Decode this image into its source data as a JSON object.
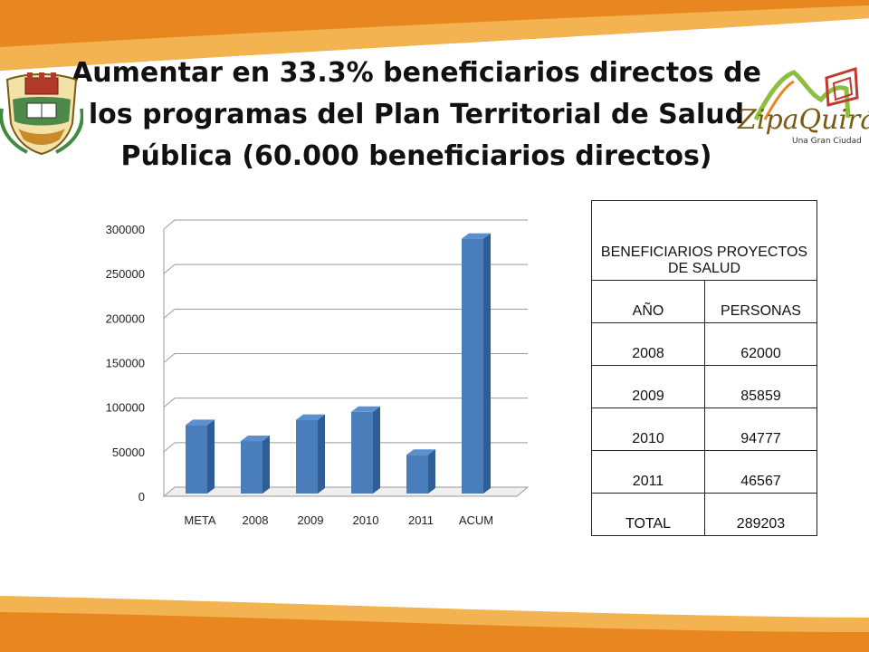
{
  "title": "Aumentar en 33.3% beneficiarios directos de los programas del Plan Territorial de Salud Pública (60.000 beneficiarios directos)",
  "logo": {
    "name": "ZipaQuirá",
    "tagline": "Una Gran Ciudad"
  },
  "colors": {
    "bar_face": "#4a7ebb",
    "bar_side": "#2f5d95",
    "bar_top": "#5b8fd0",
    "band_orange": "#e8861f",
    "band_light": "#f2b350"
  },
  "chart_data": {
    "type": "bar",
    "categories": [
      "META",
      "2008",
      "2009",
      "2010",
      "2011",
      "ACUM"
    ],
    "values": [
      80000,
      62000,
      85859,
      94777,
      46567,
      289203
    ],
    "ylim": [
      0,
      300000
    ],
    "yticks": [
      "0",
      "50000",
      "100000",
      "150000",
      "200000",
      "250000",
      "300000"
    ],
    "grid": true,
    "style": "3d-column"
  },
  "table": {
    "header": "BENEFICIARIOS PROYECTOS DE SALUD",
    "columns": [
      "AÑO",
      "PERSONAS"
    ],
    "rows": [
      [
        "2008",
        "62000"
      ],
      [
        "2009",
        "85859"
      ],
      [
        "2010",
        "94777"
      ],
      [
        "2011",
        "46567"
      ],
      [
        "TOTAL",
        "289203"
      ]
    ]
  }
}
